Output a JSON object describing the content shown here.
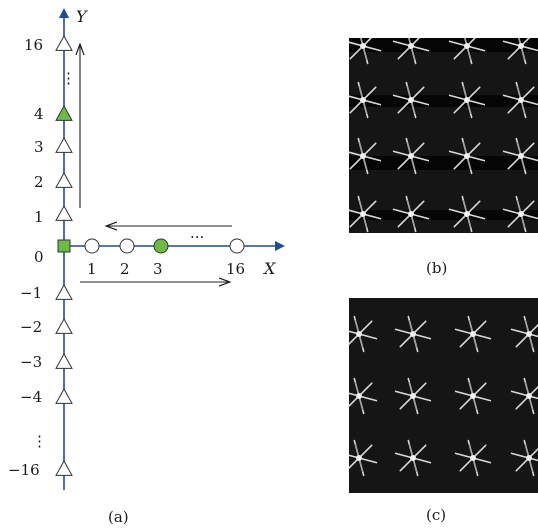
{
  "axes": {
    "x_label": "X",
    "y_label": "Y"
  },
  "y_ticks_positive": [
    "16",
    "4",
    "3",
    "2",
    "1"
  ],
  "y_tick_zero": "0",
  "y_ticks_negative": [
    "−1",
    "−2",
    "−3",
    "−4",
    "−16"
  ],
  "x_ticks": [
    "1",
    "2",
    "3",
    "16"
  ],
  "ellipsis_vertical": "⋮",
  "ellipsis_horizontal": "···",
  "captions": {
    "a": "(a)",
    "b": "(b)",
    "c": "(c)"
  },
  "colors": {
    "axis": "#1f4e8c",
    "highlight": "#6dbb45",
    "marker_stroke": "#333333",
    "arrow": "#222222",
    "photo_bg": "#151515"
  },
  "panel_b": {
    "description": ""
  },
  "panel_c": {
    "description": ""
  }
}
